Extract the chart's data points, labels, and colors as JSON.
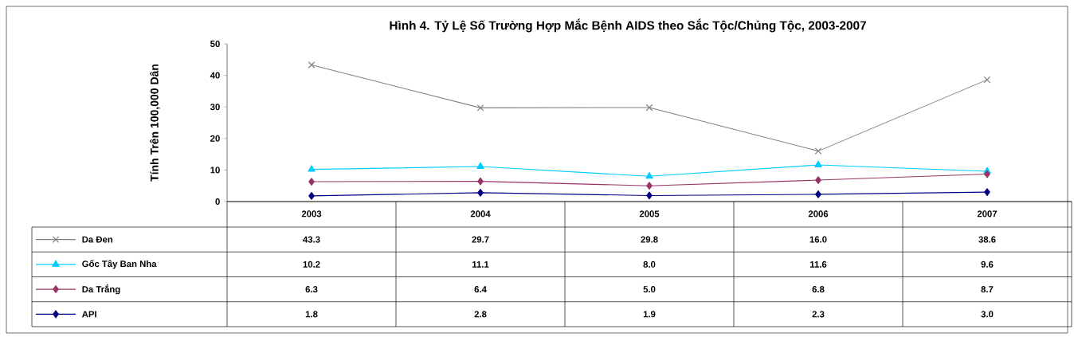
{
  "chart_data": {
    "type": "line",
    "title": "Hình 4. Tỷ Lệ Số Trường Hợp Mắc Bệnh AIDS theo Sắc Tộc/Chủng Tộc, 2003-2007",
    "ylabel": "Tính Trên 100,000 Dân",
    "categories": [
      "2003",
      "2004",
      "2005",
      "2006",
      "2007"
    ],
    "series": [
      {
        "name": "Da Đen",
        "color": "#808080",
        "marker": "cross",
        "values": [
          43.3,
          29.7,
          29.8,
          16.0,
          38.6
        ],
        "value_labels": [
          "43.3",
          "29.7",
          "29.8",
          "16.0",
          "38.6"
        ]
      },
      {
        "name": "Gốc Tây Ban Nha",
        "color": "#00ccff",
        "marker": "triangle",
        "values": [
          10.2,
          11.1,
          8.0,
          11.6,
          9.6
        ],
        "value_labels": [
          "10.2",
          "11.1",
          "8.0",
          "11.6",
          "9.6"
        ]
      },
      {
        "name": "Da Trắng",
        "color": "#993366",
        "marker": "diamond",
        "values": [
          6.3,
          6.4,
          5.0,
          6.8,
          8.7
        ],
        "value_labels": [
          "6.3",
          "6.4",
          "5.0",
          "6.8",
          "8.7"
        ]
      },
      {
        "name": "API",
        "color": "#000080",
        "marker": "diamond",
        "values": [
          1.8,
          2.8,
          1.9,
          2.3,
          3.0
        ],
        "value_labels": [
          "1.8",
          "2.8",
          "1.9",
          "2.3",
          "3.0"
        ]
      }
    ],
    "ylim": [
      0,
      50
    ],
    "yticks": [
      0,
      10,
      20,
      30,
      40,
      50
    ],
    "grid": false,
    "legend": "bottom left"
  }
}
